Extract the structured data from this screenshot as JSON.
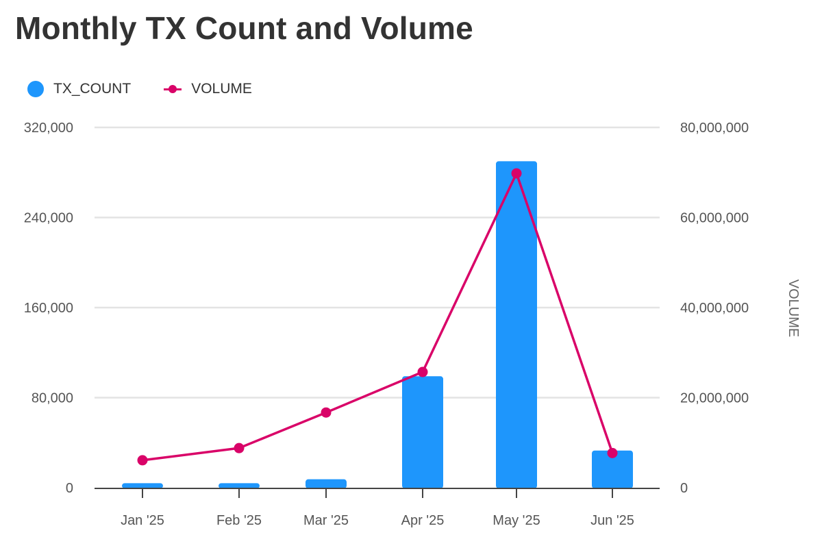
{
  "chart_data": {
    "type": "bar",
    "title": "Monthly TX Count and Volume",
    "categories": [
      "Jan '25",
      "Feb '25",
      "Mar '25",
      "Apr '25",
      "May '25",
      "Jun '25"
    ],
    "series": [
      {
        "name": "TX_COUNT",
        "type": "bar",
        "axis": "left",
        "color": "#1e96fc",
        "values": [
          4000,
          4000,
          7500,
          99000,
          290000,
          33000
        ]
      },
      {
        "name": "VOLUME",
        "type": "line",
        "axis": "right",
        "color": "#d90368",
        "values": [
          6100000,
          8800000,
          16700000,
          25700000,
          69800000,
          7700000
        ]
      }
    ],
    "y_left": {
      "label": "",
      "ylim": [
        0,
        320000
      ],
      "ticks": [
        0,
        80000,
        160000,
        240000,
        320000
      ],
      "tick_labels": [
        "0",
        "80,000",
        "160,000",
        "240,000",
        "320,000"
      ]
    },
    "y_right": {
      "label": "VOLUME",
      "ylim": [
        0,
        80000000
      ],
      "ticks": [
        0,
        20000000,
        40000000,
        60000000,
        80000000
      ],
      "tick_labels": [
        "0",
        "20,000,000",
        "40,000,000",
        "60,000,000",
        "80,000,000"
      ]
    },
    "legend_position": "top-left",
    "grid": true
  }
}
